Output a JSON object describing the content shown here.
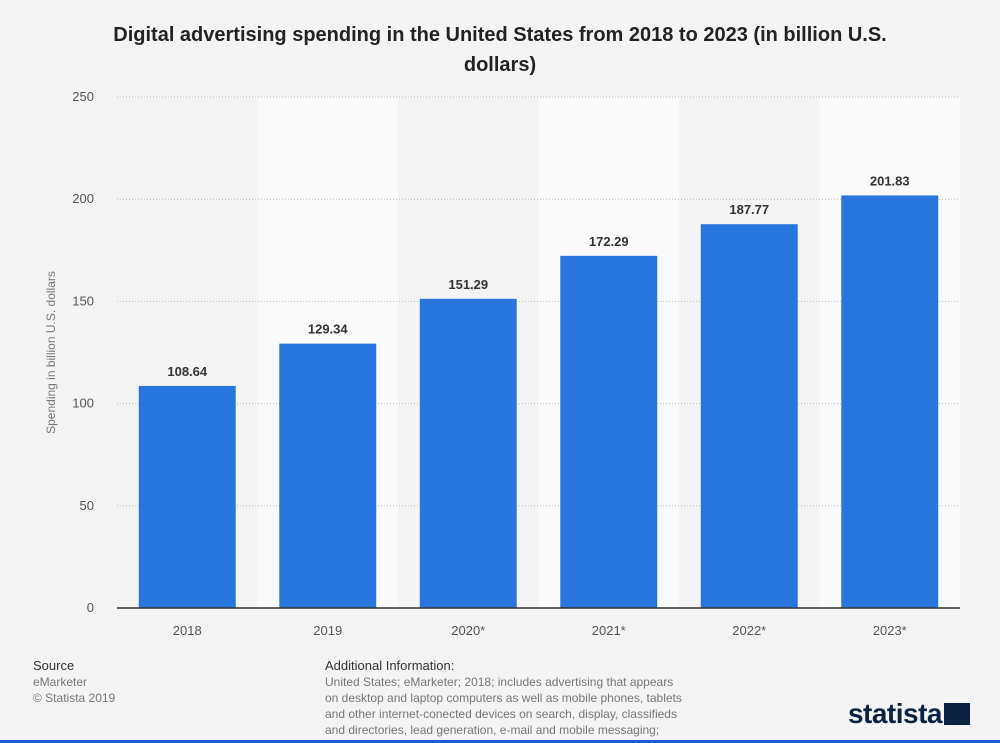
{
  "chart_data": {
    "type": "bar",
    "title": "Digital advertising spending in the United States from 2018 to 2023 (in billion U.S. dollars)",
    "y_label": "Spending in billion U.S. dollars",
    "categories": [
      "2018",
      "2019",
      "2020*",
      "2021*",
      "2022*",
      "2023*"
    ],
    "values": [
      108.64,
      129.34,
      151.29,
      172.29,
      187.77,
      201.83
    ],
    "color": "#2876dd",
    "ylim": [
      0,
      250
    ],
    "yticks": [
      0,
      50,
      100,
      150,
      200,
      250
    ],
    "grid": true
  },
  "footer": {
    "source_heading": "Source",
    "source_lines": [
      "eMarketer",
      "© Statista 2019"
    ],
    "info_heading": "Additional Information:",
    "info_lines": [
      "United States; eMarketer; 2018; includes advertising that appears",
      "on desktop and laptop computers as well as mobile phones, tablets",
      "and other internet-conected devices on search, display, classifieds",
      "and directories, lead generation, e-mail and mobile messaging;"
    ],
    "logo": "statista"
  }
}
